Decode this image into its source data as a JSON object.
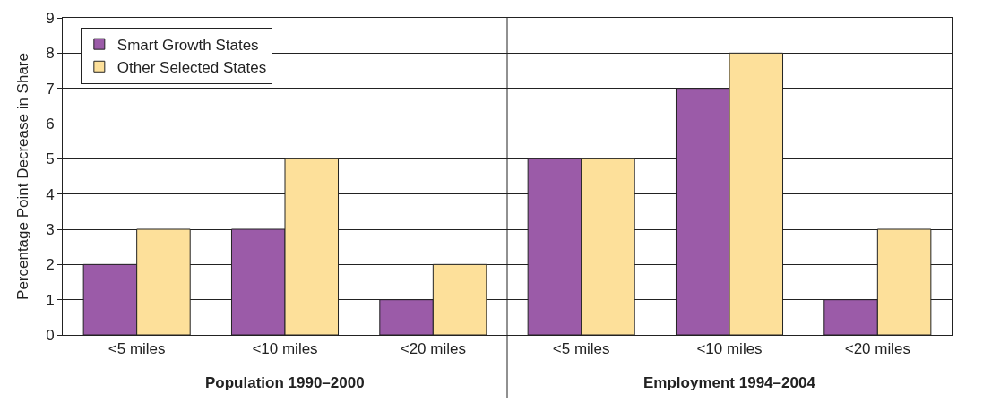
{
  "chart_data": {
    "type": "bar",
    "ylabel": "Percentage Point Decrease in Share",
    "categories": [
      "<5 miles",
      "<10 miles",
      "<20 miles",
      "<5 miles",
      "<10 miles",
      "<20 miles"
    ],
    "series": [
      {
        "name": "Smart Growth States",
        "color": "#9b5ba8",
        "values": [
          2,
          3,
          1,
          5,
          7,
          1
        ]
      },
      {
        "name": "Other Selected States",
        "color": "#fde09a",
        "values": [
          3,
          5,
          2,
          5,
          8,
          3
        ]
      }
    ],
    "annotations": [
      "Population 1990–2000",
      "Employment 1994–2004"
    ],
    "ylim": [
      0,
      9
    ],
    "yticks": [
      0,
      1,
      2,
      3,
      4,
      5,
      6,
      7,
      8,
      9
    ],
    "grid": "y",
    "legend": "top left"
  }
}
